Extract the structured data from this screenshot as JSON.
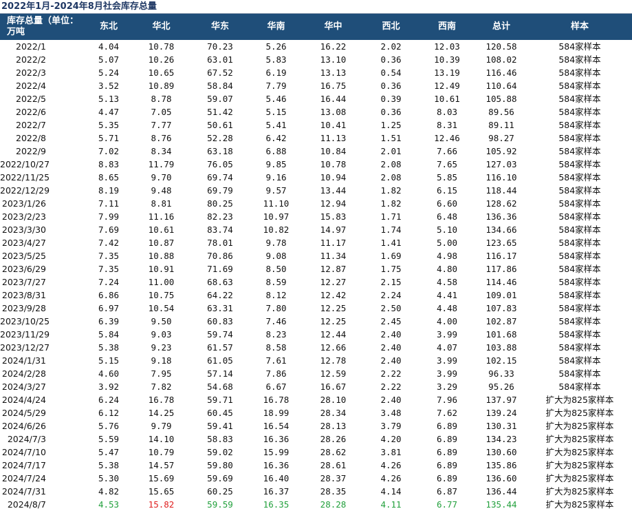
{
  "title": "2022年1月-2024年8月社会库存总量",
  "header": {
    "first": "库存总量（单位：万吨",
    "columns": [
      "东北",
      "华北",
      "华东",
      "华南",
      "华中",
      "西北",
      "西南",
      "总计",
      "样本"
    ]
  },
  "colors": {
    "header_bg": "#1f4e79",
    "header_text": "#ffffff",
    "up": "#e02020",
    "down": "#22a03c"
  },
  "rows": [
    {
      "date": "2022/1",
      "v": [
        "4.04",
        "10.78",
        "70.23",
        "5.26",
        "16.22",
        "2.02",
        "12.03",
        "120.58"
      ],
      "sample": "584家样本"
    },
    {
      "date": "2022/2",
      "v": [
        "5.07",
        "10.26",
        "63.01",
        "5.83",
        "13.10",
        "0.36",
        "10.39",
        "108.02"
      ],
      "sample": "584家样本"
    },
    {
      "date": "2022/3",
      "v": [
        "5.24",
        "10.65",
        "67.52",
        "6.19",
        "13.13",
        "0.54",
        "13.19",
        "116.46"
      ],
      "sample": "584家样本"
    },
    {
      "date": "2022/4",
      "v": [
        "3.52",
        "10.89",
        "58.84",
        "7.79",
        "16.75",
        "0.36",
        "12.49",
        "110.64"
      ],
      "sample": "584家样本"
    },
    {
      "date": "2022/5",
      "v": [
        "5.13",
        "8.78",
        "59.07",
        "5.46",
        "16.44",
        "0.39",
        "10.61",
        "105.88"
      ],
      "sample": "584家样本"
    },
    {
      "date": "2022/6",
      "v": [
        "4.47",
        "7.05",
        "51.42",
        "5.15",
        "13.08",
        "0.36",
        "8.03",
        "89.56"
      ],
      "sample": "584家样本"
    },
    {
      "date": "2022/7",
      "v": [
        "5.35",
        "7.77",
        "50.61",
        "5.41",
        "10.41",
        "1.25",
        "8.31",
        "89.11"
      ],
      "sample": "584家样本"
    },
    {
      "date": "2022/8",
      "v": [
        "5.71",
        "8.76",
        "52.28",
        "6.42",
        "11.13",
        "1.51",
        "12.46",
        "98.27"
      ],
      "sample": "584家样本"
    },
    {
      "date": "2022/9",
      "v": [
        "7.02",
        "8.34",
        "63.18",
        "6.88",
        "10.84",
        "2.01",
        "7.66",
        "105.92"
      ],
      "sample": "584家样本"
    },
    {
      "date": "2022/10/27",
      "v": [
        "8.83",
        "11.79",
        "76.05",
        "9.85",
        "10.78",
        "2.08",
        "7.65",
        "127.03"
      ],
      "sample": "584家样本"
    },
    {
      "date": "2022/11/25",
      "v": [
        "8.65",
        "9.70",
        "69.74",
        "9.16",
        "10.94",
        "2.08",
        "5.85",
        "116.10"
      ],
      "sample": "584家样本"
    },
    {
      "date": "2022/12/29",
      "v": [
        "8.19",
        "9.48",
        "69.79",
        "9.57",
        "13.44",
        "1.82",
        "6.15",
        "118.44"
      ],
      "sample": "584家样本"
    },
    {
      "date": "2023/1/26",
      "v": [
        "7.11",
        "8.81",
        "80.25",
        "11.10",
        "12.94",
        "1.82",
        "6.60",
        "128.62"
      ],
      "sample": "584家样本"
    },
    {
      "date": "2023/2/23",
      "v": [
        "7.99",
        "11.16",
        "82.23",
        "10.97",
        "15.83",
        "1.71",
        "6.48",
        "136.36"
      ],
      "sample": "584家样本"
    },
    {
      "date": "2023/3/30",
      "v": [
        "7.69",
        "10.61",
        "83.74",
        "10.82",
        "14.97",
        "1.74",
        "5.10",
        "134.66"
      ],
      "sample": "584家样本"
    },
    {
      "date": "2023/4/27",
      "v": [
        "7.42",
        "10.87",
        "78.01",
        "9.78",
        "11.17",
        "1.41",
        "5.00",
        "123.65"
      ],
      "sample": "584家样本"
    },
    {
      "date": "2023/5/25",
      "v": [
        "7.35",
        "10.88",
        "70.86",
        "9.08",
        "11.34",
        "1.69",
        "4.98",
        "116.17"
      ],
      "sample": "584家样本"
    },
    {
      "date": "2023/6/29",
      "v": [
        "7.35",
        "10.91",
        "71.69",
        "8.50",
        "12.87",
        "1.75",
        "4.80",
        "117.86"
      ],
      "sample": "584家样本"
    },
    {
      "date": "2023/7/27",
      "v": [
        "7.24",
        "11.00",
        "68.63",
        "8.59",
        "12.27",
        "2.15",
        "4.58",
        "114.46"
      ],
      "sample": "584家样本"
    },
    {
      "date": "2023/8/31",
      "v": [
        "6.86",
        "10.75",
        "64.22",
        "8.12",
        "12.42",
        "2.24",
        "4.41",
        "109.01"
      ],
      "sample": "584家样本"
    },
    {
      "date": "2023/9/28",
      "v": [
        "6.97",
        "10.54",
        "63.31",
        "7.80",
        "12.25",
        "2.50",
        "4.48",
        "107.83"
      ],
      "sample": "584家样本"
    },
    {
      "date": "2023/10/25",
      "v": [
        "6.39",
        "9.50",
        "60.83",
        "7.46",
        "12.25",
        "2.45",
        "4.00",
        "102.87"
      ],
      "sample": "584家样本"
    },
    {
      "date": "2023/11/29",
      "v": [
        "5.84",
        "9.03",
        "59.74",
        "8.23",
        "12.44",
        "2.40",
        "3.99",
        "101.68"
      ],
      "sample": "584家样本"
    },
    {
      "date": "2023/12/27",
      "v": [
        "5.38",
        "9.23",
        "61.57",
        "8.58",
        "12.66",
        "2.40",
        "4.07",
        "103.88"
      ],
      "sample": "584家样本"
    },
    {
      "date": "2024/1/31",
      "v": [
        "5.15",
        "9.18",
        "61.05",
        "7.61",
        "12.78",
        "2.40",
        "3.99",
        "102.15"
      ],
      "sample": "584家样本"
    },
    {
      "date": "2024/2/28",
      "v": [
        "4.60",
        "7.95",
        "57.14",
        "7.86",
        "12.59",
        "2.22",
        "3.99",
        "96.33"
      ],
      "sample": "584家样本"
    },
    {
      "date": "2024/3/27",
      "v": [
        "3.92",
        "7.82",
        "54.68",
        "6.67",
        "16.67",
        "2.22",
        "3.29",
        "95.26"
      ],
      "sample": "584家样本"
    },
    {
      "date": "2024/4/24",
      "v": [
        "6.24",
        "16.78",
        "59.71",
        "16.78",
        "28.10",
        "2.40",
        "7.96",
        "137.97"
      ],
      "sample": "扩大为825家样本"
    },
    {
      "date": "2024/5/29",
      "v": [
        "6.12",
        "14.25",
        "60.45",
        "18.99",
        "28.34",
        "3.48",
        "7.62",
        "139.24"
      ],
      "sample": "扩大为825家样本"
    },
    {
      "date": "2024/6/26",
      "v": [
        "5.76",
        "9.79",
        "59.41",
        "16.54",
        "28.13",
        "3.79",
        "6.89",
        "130.31"
      ],
      "sample": "扩大为825家样本"
    },
    {
      "date": "2024/7/3",
      "v": [
        "5.59",
        "14.10",
        "58.83",
        "16.36",
        "28.26",
        "4.20",
        "6.89",
        "134.23"
      ],
      "sample": "扩大为825家样本"
    },
    {
      "date": "2024/7/10",
      "v": [
        "5.47",
        "10.79",
        "59.02",
        "15.99",
        "28.62",
        "3.81",
        "6.89",
        "130.60"
      ],
      "sample": "扩大为825家样本"
    },
    {
      "date": "2024/7/17",
      "v": [
        "5.38",
        "14.57",
        "59.80",
        "16.36",
        "28.61",
        "4.26",
        "6.89",
        "135.86"
      ],
      "sample": "扩大为825家样本"
    },
    {
      "date": "2024/7/24",
      "v": [
        "5.30",
        "15.69",
        "59.69",
        "16.40",
        "28.37",
        "4.26",
        "6.89",
        "136.60"
      ],
      "sample": "扩大为825家样本"
    },
    {
      "date": "2024/7/31",
      "v": [
        "4.82",
        "15.65",
        "60.25",
        "16.37",
        "28.35",
        "4.14",
        "6.87",
        "136.44"
      ],
      "sample": "扩大为825家样本"
    },
    {
      "date": "2024/8/7",
      "v": [
        "4.53",
        "15.82",
        "59.59",
        "16.35",
        "28.28",
        "4.11",
        "6.77",
        "135.44"
      ],
      "sample": "扩大为825家样本",
      "colors": [
        "down",
        "up",
        "down",
        "down",
        "down",
        "down",
        "down",
        "down"
      ]
    }
  ]
}
